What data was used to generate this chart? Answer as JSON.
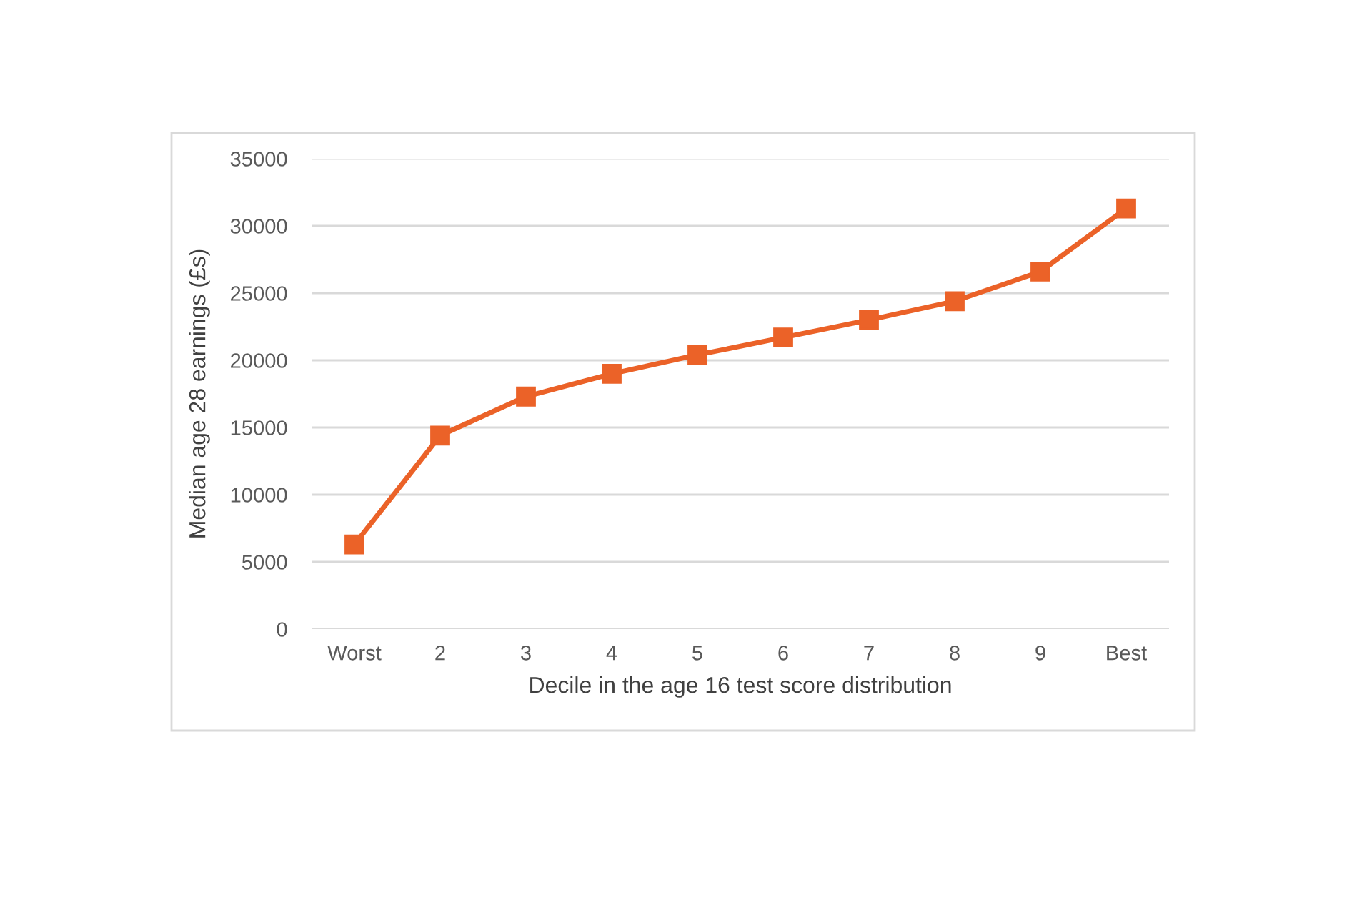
{
  "chart_data": {
    "type": "line",
    "xlabel": "Decile in the age 16 test score distribution",
    "ylabel": "Median age 28 earnings (£s)",
    "categories": [
      "Worst",
      "2",
      "3",
      "4",
      "5",
      "6",
      "7",
      "8",
      "9",
      "Best"
    ],
    "series": [
      {
        "color": "#eb6228",
        "values": [
          6300,
          14400,
          17300,
          19000,
          20400,
          21700,
          23000,
          24400,
          26600,
          31300
        ]
      }
    ],
    "ylim": [
      0,
      35000
    ],
    "yticks": [
      0,
      5000,
      10000,
      15000,
      20000,
      25000,
      30000,
      35000
    ],
    "grid": "y",
    "marker": "square",
    "line_style": "solid"
  }
}
